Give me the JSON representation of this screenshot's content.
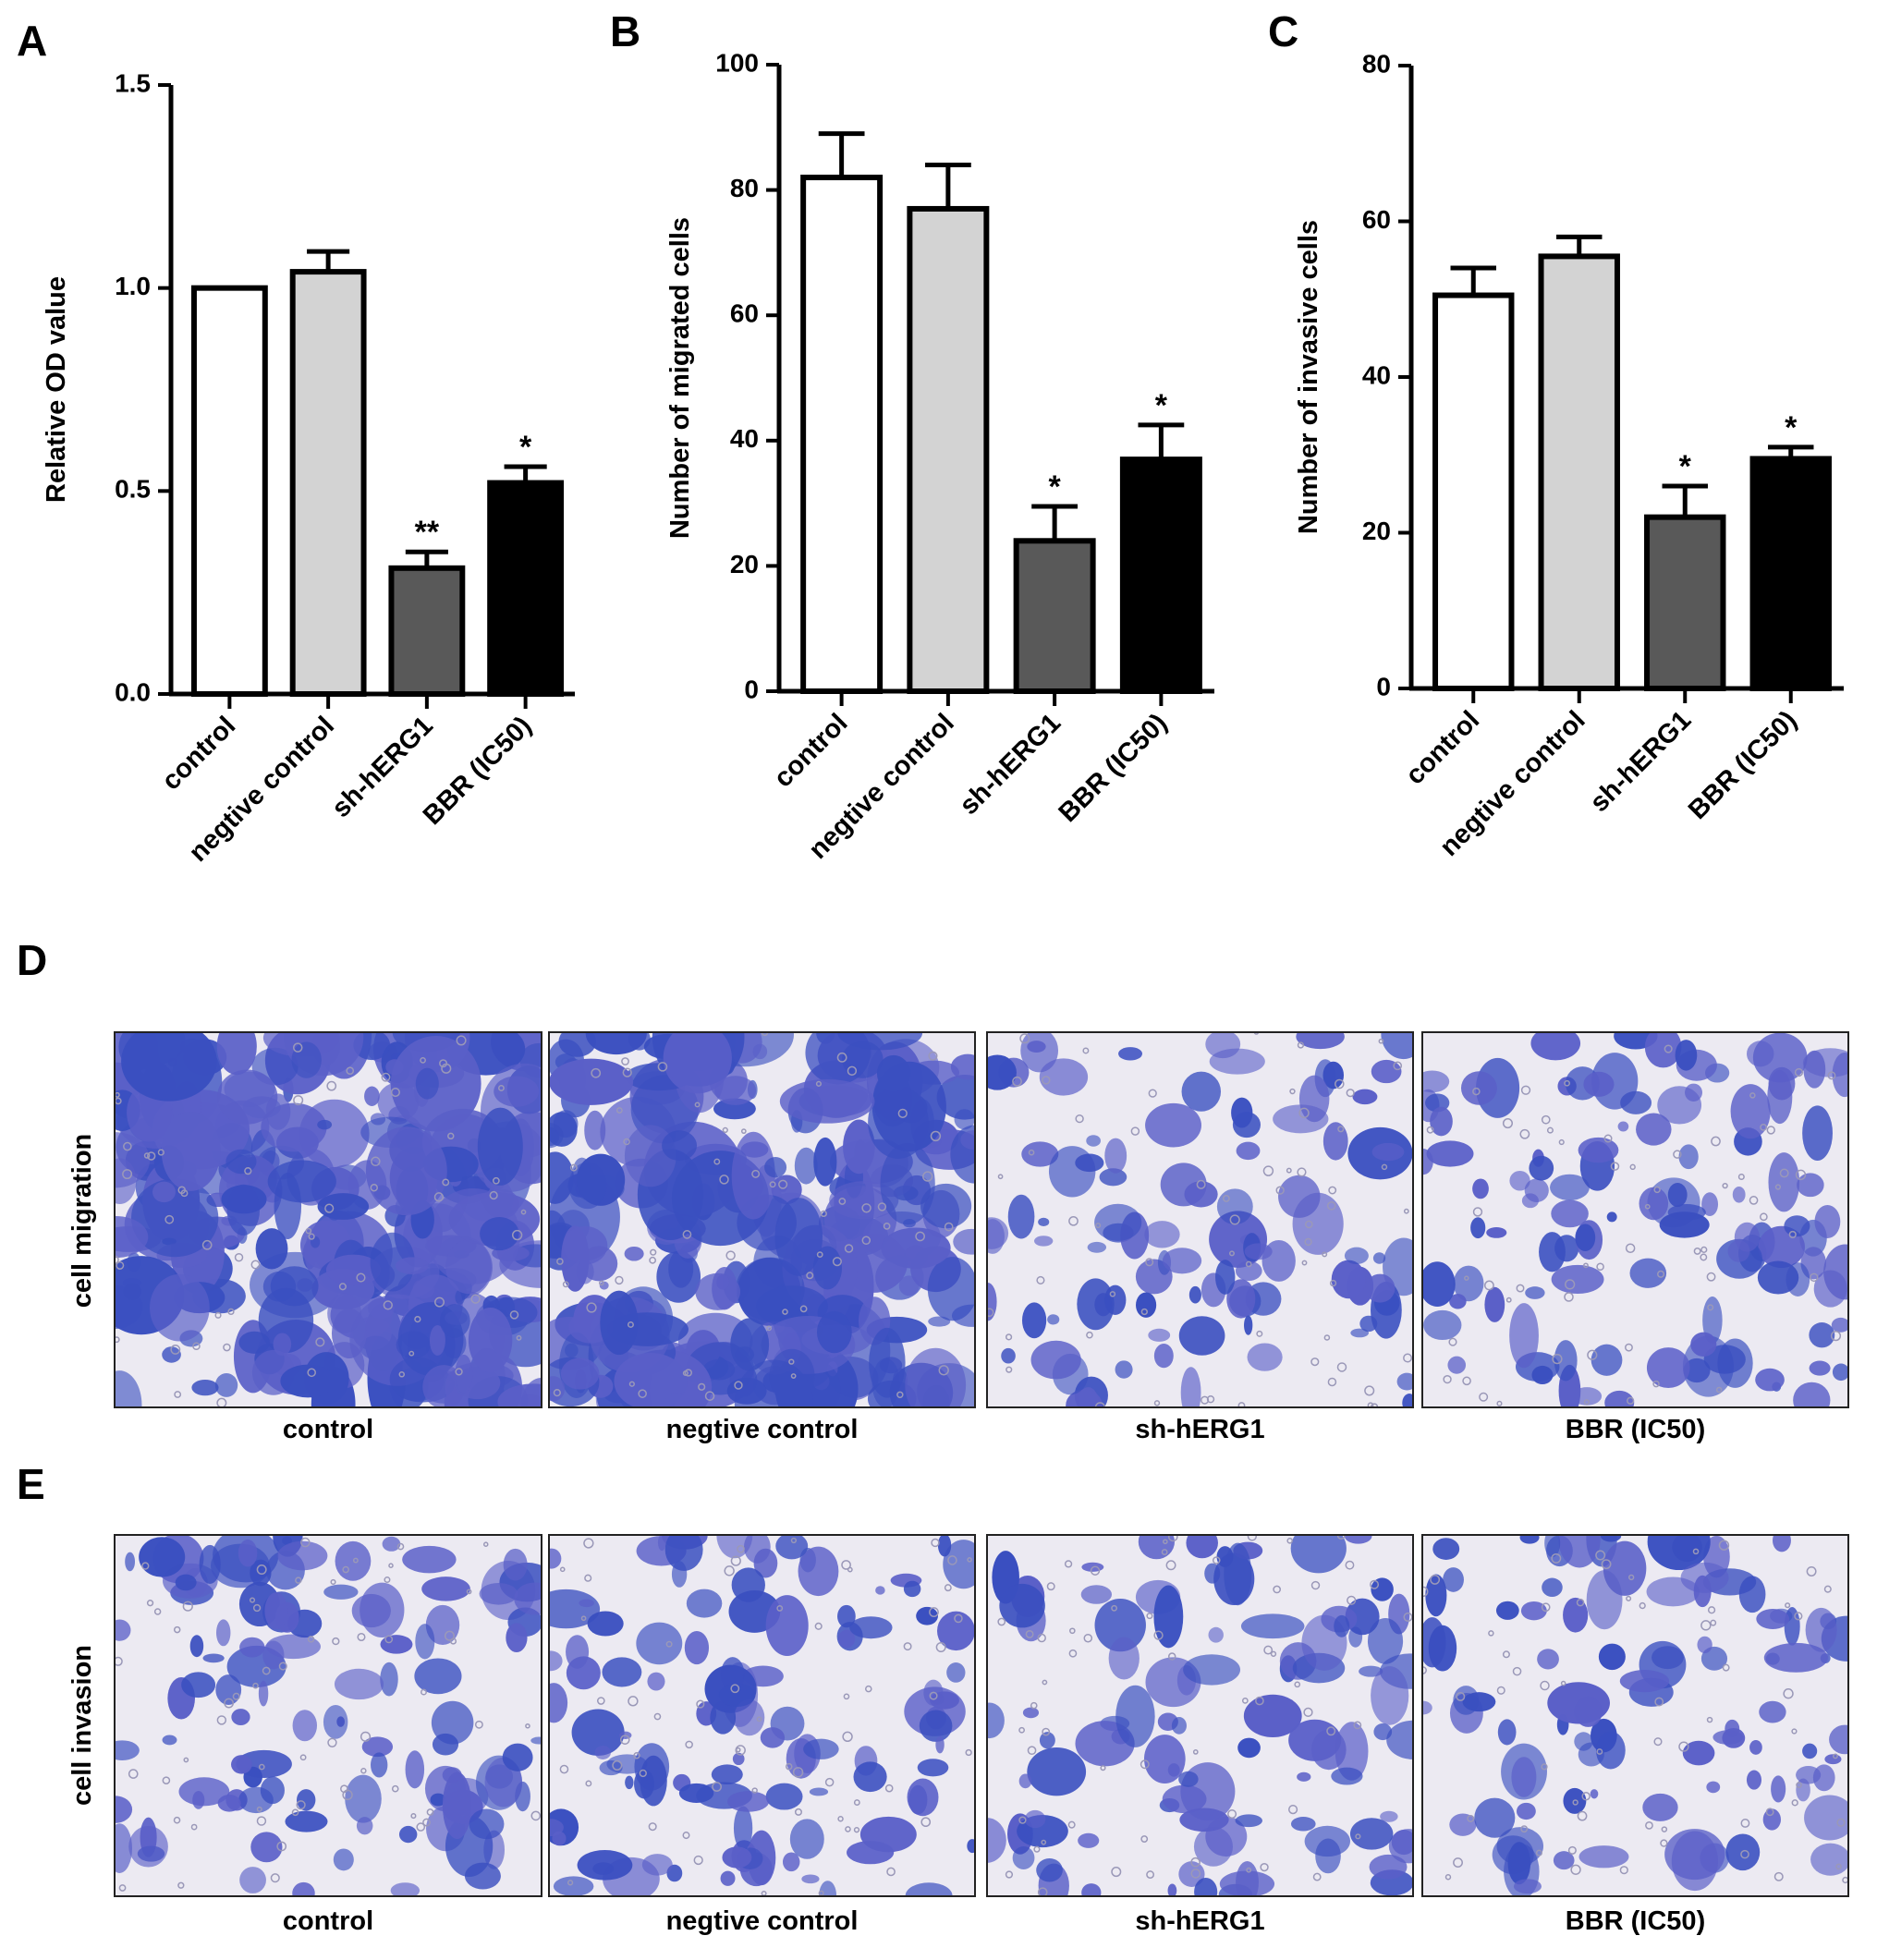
{
  "chart_data": [
    {
      "type": "bar",
      "panel": "A",
      "ylabel": "Relative OD value",
      "categories": [
        "control",
        "negtive control",
        "sh-hERG1",
        "BBR (IC50)"
      ],
      "values": [
        1.0,
        1.04,
        0.31,
        0.52
      ],
      "errors": [
        0,
        0.05,
        0.04,
        0.04
      ],
      "annotations": [
        null,
        null,
        "**",
        "*"
      ],
      "colors": [
        "#ffffff",
        "#d3d3d3",
        "#595959",
        "#000000"
      ],
      "ylim": [
        0,
        1.5
      ],
      "yticks": [
        {
          "value": 0,
          "label": "0.0"
        },
        0.5,
        {
          "value": 1,
          "label": "1.0"
        },
        1.5
      ]
    },
    {
      "type": "bar",
      "panel": "B",
      "ylabel": "Number of migrated cells",
      "categories": [
        "control",
        "negtive control",
        "sh-hERG1",
        "BBR (IC50)"
      ],
      "values": [
        82,
        77,
        24,
        37
      ],
      "errors": [
        7,
        7,
        5.5,
        5.5
      ],
      "annotations": [
        null,
        null,
        "*",
        "*"
      ],
      "colors": [
        "#ffffff",
        "#d3d3d3",
        "#595959",
        "#000000"
      ],
      "ylim": [
        0,
        100
      ],
      "yticks": [
        0,
        20,
        40,
        60,
        80,
        100
      ]
    },
    {
      "type": "bar",
      "panel": "C",
      "ylabel": "Number of invasive cells",
      "categories": [
        "control",
        "negtive control",
        "sh-hERG1",
        "BBR (IC50)"
      ],
      "values": [
        50.5,
        55.5,
        22,
        29.5
      ],
      "errors": [
        3.5,
        2.5,
        4,
        1.5
      ],
      "annotations": [
        null,
        null,
        "*",
        "*"
      ],
      "colors": [
        "#ffffff",
        "#d3d3d3",
        "#595959",
        "#000000"
      ],
      "ylim": [
        0,
        80
      ],
      "yticks": [
        0,
        20,
        40,
        60,
        80
      ]
    }
  ],
  "images": [
    {
      "panel": "D",
      "row_label": "cell migration",
      "captions": [
        "control",
        "negtive control",
        "sh-hERG1",
        "BBR (IC50)"
      ]
    },
    {
      "panel": "E",
      "row_label": "cell invasion",
      "captions": [
        "control",
        "negtive control",
        "sh-hERG1",
        "BBR (IC50)"
      ]
    }
  ]
}
